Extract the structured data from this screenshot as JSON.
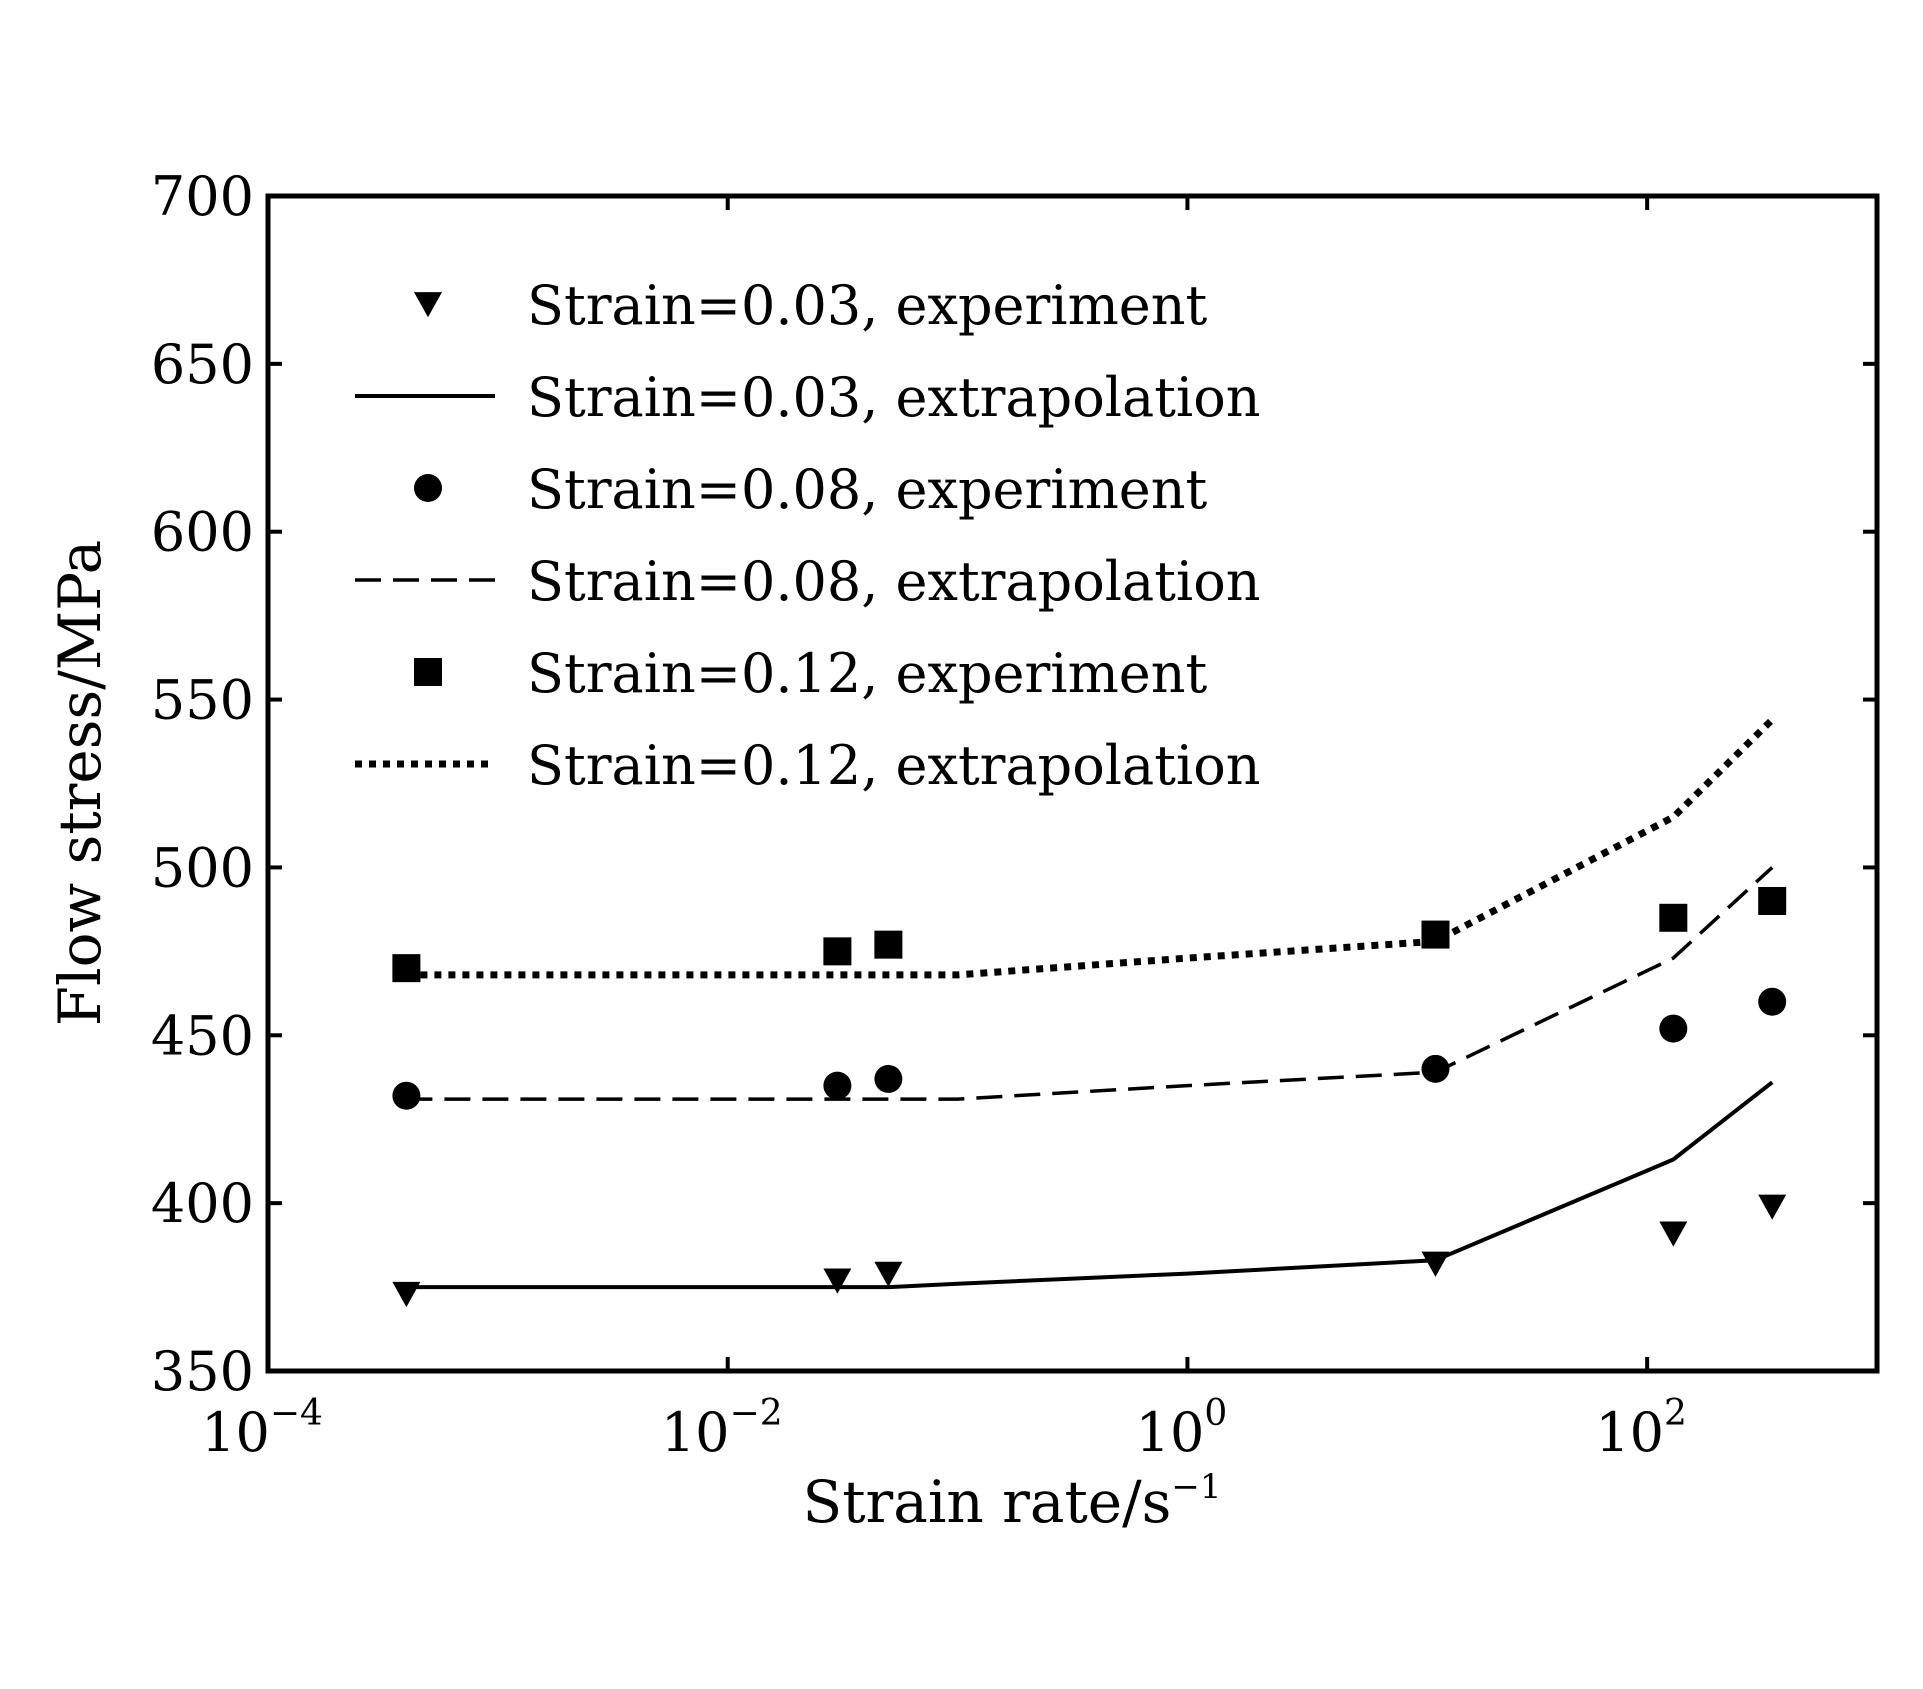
{
  "chart_data": {
    "type": "scatter",
    "xscale": "log",
    "xlim": [
      0.0001,
      1000
    ],
    "ylim": [
      350,
      700
    ],
    "xlabel": "Strain rate/s",
    "xlabel_sup": "−1",
    "ylabel": "Flow stress/MPa",
    "grid": false,
    "legend_position": "top-left",
    "x_ticks": [
      {
        "value": 0.0001,
        "base": "10",
        "exp": "−4"
      },
      {
        "value": 0.01,
        "base": "10",
        "exp": "−2"
      },
      {
        "value": 1,
        "base": "10",
        "exp": "0"
      },
      {
        "value": 100,
        "base": "10",
        "exp": "2"
      }
    ],
    "y_ticks": [
      "350",
      "400",
      "450",
      "500",
      "550",
      "600",
      "650",
      "700"
    ],
    "series": [
      {
        "name": "Strain=0.03, experiment",
        "kind": "markers",
        "marker": "triangle-down",
        "x": [
          0.0004,
          0.03,
          0.05,
          12,
          130,
          350
        ],
        "y": [
          373,
          377,
          379,
          382,
          391,
          399
        ]
      },
      {
        "name": "Strain=0.03, extrapolation",
        "kind": "line",
        "style": "solid",
        "x": [
          0.0004,
          0.03,
          0.05,
          0.1,
          1,
          12,
          130,
          350
        ],
        "y": [
          375,
          375,
          375,
          376,
          379,
          383,
          413,
          436
        ]
      },
      {
        "name": "Strain=0.08, experiment",
        "kind": "markers",
        "marker": "circle",
        "x": [
          0.0004,
          0.03,
          0.05,
          12,
          130,
          350
        ],
        "y": [
          432,
          435,
          437,
          440,
          452,
          460
        ]
      },
      {
        "name": "Strain=0.08, extrapolation",
        "kind": "line",
        "style": "dashed",
        "x": [
          0.0004,
          0.03,
          0.05,
          0.1,
          1,
          12,
          130,
          350
        ],
        "y": [
          431,
          431,
          431,
          431,
          435,
          439,
          473,
          500
        ]
      },
      {
        "name": "Strain=0.12, experiment",
        "kind": "markers",
        "marker": "square",
        "x": [
          0.0004,
          0.03,
          0.05,
          12,
          130,
          350
        ],
        "y": [
          470,
          475,
          477,
          480,
          485,
          490
        ]
      },
      {
        "name": "Strain=0.12, extrapolation",
        "kind": "line",
        "style": "dotted",
        "x": [
          0.0004,
          0.03,
          0.05,
          0.1,
          1,
          12,
          130,
          350
        ],
        "y": [
          468,
          468,
          468,
          468,
          473,
          478,
          515,
          544
        ]
      }
    ]
  }
}
